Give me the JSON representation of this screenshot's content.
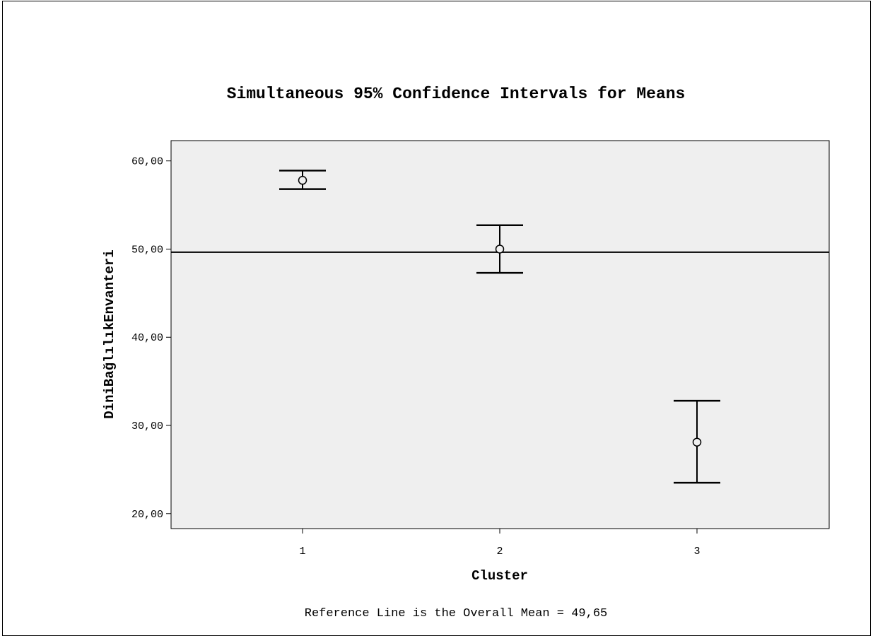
{
  "chart_data": {
    "type": "errorbar",
    "title": "Simultaneous 95% Confidence Intervals for Means",
    "xlabel": "Cluster",
    "ylabel": "DiniBağlılıkEnvanteri",
    "categories": [
      "1",
      "2",
      "3"
    ],
    "points": [
      {
        "x": "1",
        "mean": 57.8,
        "lower": 56.8,
        "upper": 58.9
      },
      {
        "x": "2",
        "mean": 50.0,
        "lower": 47.3,
        "upper": 52.7
      },
      {
        "x": "3",
        "mean": 28.1,
        "lower": 23.5,
        "upper": 32.8
      }
    ],
    "yticks": [
      20,
      30,
      40,
      50,
      60
    ],
    "ytick_labels": [
      "20,00",
      "30,00",
      "40,00",
      "50,00",
      "60,00"
    ],
    "ylim": [
      18.3,
      62.3
    ],
    "reference_line": {
      "value": 49.65
    },
    "footnote": "Reference Line is the Overall Mean = 49,65",
    "plot_background": "#efefef",
    "line_color": "#000000"
  }
}
